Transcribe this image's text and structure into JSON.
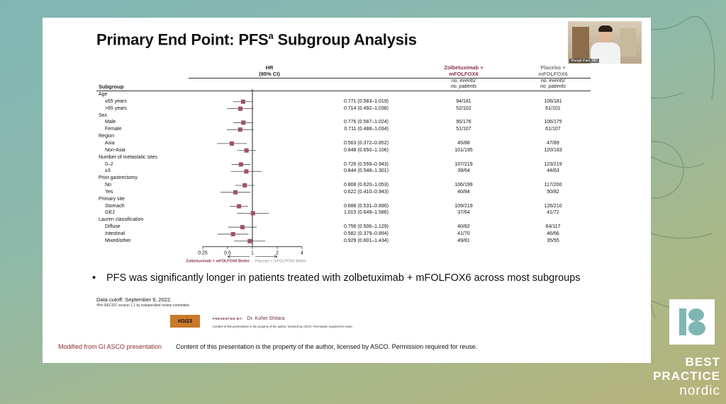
{
  "slide": {
    "title": "Primary End Point: PFS",
    "title_sup": "a",
    "webcam_label": "Wungli-Park, MD",
    "headers": {
      "hr_line1": "HR",
      "hr_line2": "(95% CI)",
      "subgroup": "Subgroup",
      "zolbe_line1": "Zolbetuximab +",
      "zolbe_line2": "mFOLFOX6",
      "placebo_line1": "Placebo +",
      "placebo_line2": "mFOLFOX6",
      "events_line1": "no. events/",
      "events_line2": "no. patients"
    },
    "title_suffix": " Subgroup Analysis",
    "rows": [
      {
        "label": "Age",
        "category": true
      },
      {
        "label": "≤65 years",
        "hr": "0.771 (0.583–1.019)",
        "zolbe": "94/181",
        "placebo": "106/181",
        "est": 0.771,
        "lo": 0.583,
        "hi": 1.019
      },
      {
        "label": ">65 years",
        "hr": "0.714 (0.492–1.038)",
        "zolbe": "52/102",
        "placebo": "61/101",
        "est": 0.714,
        "lo": 0.492,
        "hi": 1.038
      },
      {
        "label": "Sex",
        "category": true
      },
      {
        "label": "Male",
        "hr": "0.776 (0.587–1.024)",
        "zolbe": "95/176",
        "placebo": "106/175",
        "est": 0.776,
        "lo": 0.587,
        "hi": 1.024
      },
      {
        "label": "Female",
        "hr": "0.711 (0.488–1.034)",
        "zolbe": "51/107",
        "placebo": "61/107",
        "est": 0.711,
        "lo": 0.488,
        "hi": 1.034
      },
      {
        "label": "Region",
        "category": true
      },
      {
        "label": "Asia",
        "hr": "0.563 (0.372–0.852)",
        "zolbe": "45/88",
        "placebo": "47/89",
        "est": 0.563,
        "lo": 0.372,
        "hi": 0.852
      },
      {
        "label": "Non-Asia",
        "hr": "0.848 (0.650–1.106)",
        "zolbe": "101/195",
        "placebo": "120/193",
        "est": 0.848,
        "lo": 0.65,
        "hi": 1.106
      },
      {
        "label": "Number of metastatic sites",
        "category": true
      },
      {
        "label": "0–2",
        "hr": "0.726 (0.559–0.943)",
        "zolbe": "107/219",
        "placebo": "123/219",
        "est": 0.726,
        "lo": 0.559,
        "hi": 0.943
      },
      {
        "label": "≥3",
        "hr": "0.844 (0.548–1.301)",
        "zolbe": "39/64",
        "placebo": "44/63",
        "est": 0.844,
        "lo": 0.548,
        "hi": 1.301
      },
      {
        "label": "Prior gastrectomy",
        "category": true
      },
      {
        "label": "No",
        "hr": "0.808 (0.620–1.053)",
        "zolbe": "106/199",
        "placebo": "117/200",
        "est": 0.808,
        "lo": 0.62,
        "hi": 1.053
      },
      {
        "label": "Yes",
        "hr": "0.622 (0.410–0.943)",
        "zolbe": "40/84",
        "placebo": "50/82",
        "est": 0.622,
        "lo": 0.41,
        "hi": 0.943
      },
      {
        "label": "Primary site",
        "category": true
      },
      {
        "label": "Stomach",
        "hr": "0.688 (0.531–0.890)",
        "zolbe": "109/219",
        "placebo": "126/210",
        "est": 0.688,
        "lo": 0.531,
        "hi": 0.89
      },
      {
        "label": "GEJ",
        "hr": "1.015 (0.649–1.586)",
        "zolbe": "37/64",
        "placebo": "41/72",
        "est": 1.015,
        "lo": 0.649,
        "hi": 1.586
      },
      {
        "label": "Lauren classification",
        "category": true
      },
      {
        "label": "Diffuse",
        "hr": "0.756 (0.506–1.129)",
        "zolbe": "40/82",
        "placebo": "64/117",
        "est": 0.756,
        "lo": 0.506,
        "hi": 1.129
      },
      {
        "label": "Intestinal",
        "hr": "0.582 (0.379–0.894)",
        "zolbe": "41/70",
        "placebo": "46/66",
        "est": 0.582,
        "lo": 0.379,
        "hi": 0.894
      },
      {
        "label": "Mixed/other",
        "hr": "0.929 (0.601–1.434)",
        "zolbe": "49/81",
        "placebo": "35/55",
        "est": 0.929,
        "lo": 0.601,
        "hi": 1.434
      }
    ],
    "axis_ticks": [
      "0.25",
      "0.5",
      "1",
      "2",
      "4"
    ],
    "axis_tick_values": [
      0.25,
      0.5,
      1,
      2,
      4
    ],
    "favors_left": "Zolbetuximab + mFOLFOX6 Better",
    "favors_right": "Placebo + mFOLFOX6 Better",
    "bullet_text": "PFS was significantly longer in patients treated with zolbetuximab + mFOLFOX6 across most subgroups",
    "data_cutoff": "Data cutoff: September 9, 2022.",
    "footnote": "ªPer RECIST version 1.1 by independent review committee.",
    "badge": "#GI23",
    "presented_by_label": "PRESENTED BY:",
    "presenter": "Dr. Kohei Shitara",
    "presented_note": "Content of this presentation is the property of the author, licensed by ASCO. Permission required for reuse.",
    "modified_from": "Modified from GI ASCO presentation",
    "content_note": "Content of this presentation is the property of the author, licensed by ASCO. Permission required for reuse."
  },
  "brand": {
    "line1": "BEST",
    "line2": "PRACTICE",
    "line3": "nordic"
  },
  "colors": {
    "marker": "#a0506a",
    "zolbe": "#8a2f4b",
    "placebo": "#777777",
    "badge": "#c97a2a",
    "brand_accent": "#7fb6b4"
  },
  "chart_data": {
    "type": "forest",
    "xscale": "log",
    "xlim": [
      0.25,
      4
    ],
    "reference_line": 1,
    "categories": [
      "≤65 years",
      ">65 years",
      "Male",
      "Female",
      "Asia",
      "Non-Asia",
      "0–2",
      "≥3",
      "No",
      "Yes",
      "Stomach",
      "GEJ",
      "Diffuse",
      "Intestinal",
      "Mixed/other"
    ],
    "hr": [
      0.771,
      0.714,
      0.776,
      0.711,
      0.563,
      0.848,
      0.726,
      0.844,
      0.808,
      0.622,
      0.688,
      1.015,
      0.756,
      0.582,
      0.929
    ],
    "ci_low": [
      0.583,
      0.492,
      0.587,
      0.488,
      0.372,
      0.65,
      0.559,
      0.548,
      0.62,
      0.41,
      0.531,
      0.649,
      0.506,
      0.379,
      0.601
    ],
    "ci_high": [
      1.019,
      1.038,
      1.024,
      1.034,
      0.852,
      1.106,
      0.943,
      1.301,
      1.053,
      0.943,
      0.89,
      1.586,
      1.129,
      0.894,
      1.434
    ]
  }
}
